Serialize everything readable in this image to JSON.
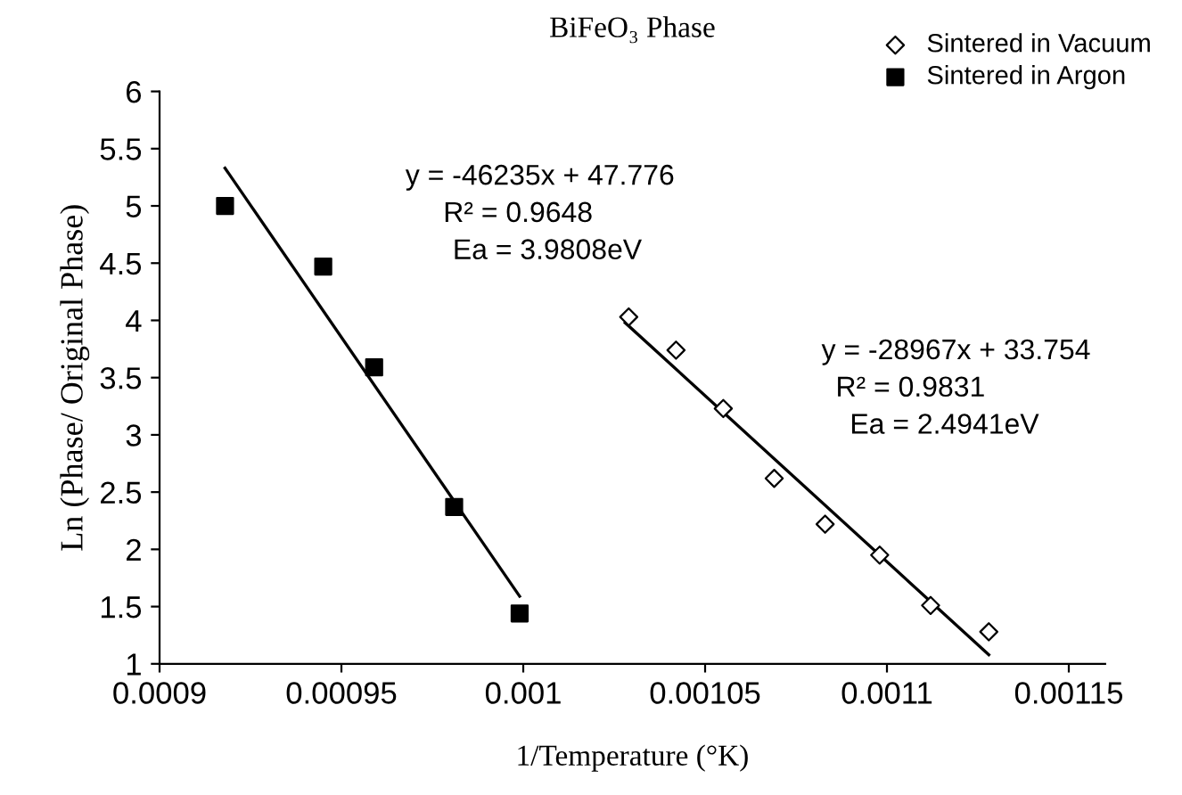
{
  "chart_data": {
    "type": "scatter",
    "title": "BiFeO₃ Phase",
    "xlabel": "1/Temperature (°K)",
    "ylabel": "Ln (Phase/ Original Phase)",
    "xlim": [
      0.0009,
      0.00116
    ],
    "ylim": [
      1,
      6
    ],
    "xticks": [
      0.0009,
      0.00095,
      0.001,
      0.00105,
      0.0011,
      0.00115
    ],
    "yticks": [
      1,
      1.5,
      2,
      2.5,
      3,
      3.5,
      4,
      4.5,
      5,
      5.5,
      6
    ],
    "grid": false,
    "legend": "top right",
    "series": [
      {
        "name": "Sintered in Vacuum",
        "marker": "diamond",
        "color": "#000000",
        "x": [
          0.001029,
          0.001042,
          0.001055,
          0.001069,
          0.001083,
          0.001098,
          0.001112,
          0.001128
        ],
        "values": [
          4.03,
          3.74,
          3.23,
          2.62,
          2.22,
          1.95,
          1.51,
          1.28
        ]
      },
      {
        "name": "Sintered in Argon",
        "marker": "square",
        "color": "#000000",
        "x": [
          0.000918,
          0.000945,
          0.000959,
          0.000981,
          0.000999
        ],
        "values": [
          5.0,
          4.47,
          3.59,
          2.37,
          1.44
        ]
      },
      {
        "type": "line",
        "color": "#000000",
        "line_style": "solid",
        "x": [
          0.000918,
          0.000999
        ],
        "values": [
          5.33,
          1.59
        ]
      },
      {
        "type": "line",
        "color": "#000000",
        "line_style": "solid",
        "x": [
          0.001028,
          0.001128
        ],
        "values": [
          3.98,
          1.08
        ]
      }
    ],
    "annotations": [
      "y = -46235x + 47.776",
      "R² = 0.9648",
      "Ea = 3.9808eV",
      "y = -28967x + 33.754",
      "R² = 0.9831",
      "Ea = 2.4941eV"
    ]
  }
}
